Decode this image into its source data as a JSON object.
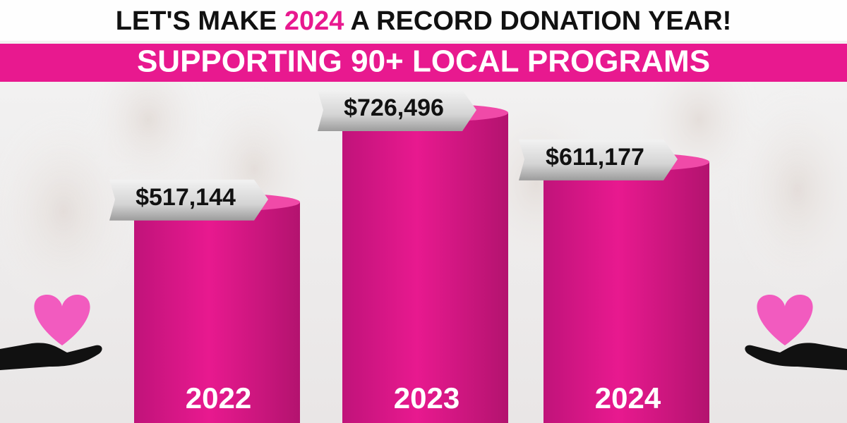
{
  "chart_data": {
    "type": "bar",
    "title": [
      "LET'S MAKE",
      "2024",
      "A RECORD DONATION YEAR!"
    ],
    "subtitle": "SUPPORTING 90+ LOCAL PROGRAMS",
    "categories": [
      "2022",
      "2023",
      "2024"
    ],
    "values": [
      517144,
      726496,
      611177
    ],
    "value_labels": [
      "$517,144",
      "$726,496",
      "$611,177"
    ],
    "color": "#e8198f",
    "highlight_color": "#e8198f"
  }
}
